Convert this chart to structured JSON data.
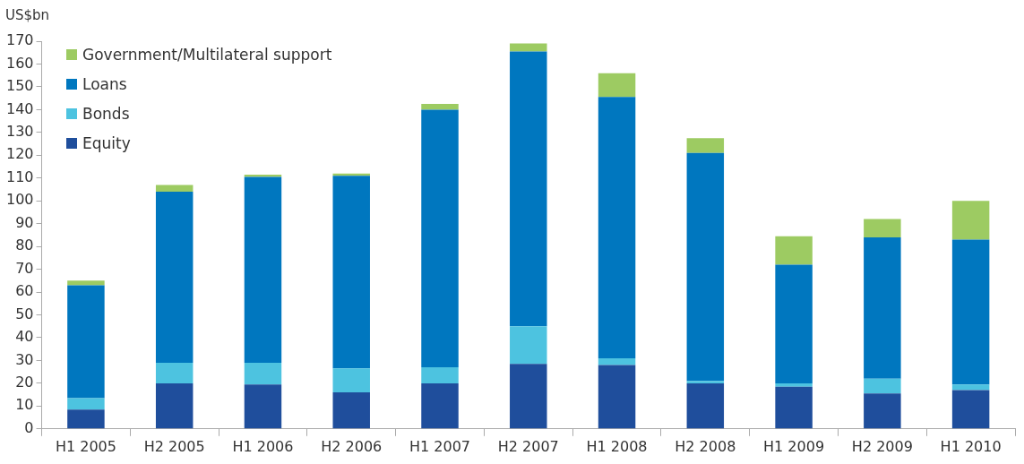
{
  "chart_data": {
    "type": "bar",
    "ylabel": "US$bn",
    "stacked": true,
    "legend": "top left",
    "grid": false,
    "categories": [
      "H1 2005",
      "H2 2005",
      "H1 2006",
      "H2 2006",
      "H1 2007",
      "H2 2007",
      "H1 2008",
      "H2 2008",
      "H1 2009",
      "H2 2009",
      "H1 2010"
    ],
    "series": [
      {
        "name": "Equity",
        "color": "#1f4e9c",
        "values": [
          8.5,
          20,
          19.5,
          16,
          20,
          28.5,
          28,
          20,
          18.5,
          15.5,
          17
        ]
      },
      {
        "name": "Bonds",
        "color": "#4dc3e0",
        "values": [
          5,
          9,
          9.5,
          10.5,
          7,
          16.5,
          3,
          1,
          1.5,
          6.5,
          2.5
        ]
      },
      {
        "name": "Loans",
        "color": "#0077bf",
        "values": [
          49.5,
          75,
          81.5,
          84.5,
          113,
          120.5,
          114.5,
          100,
          52,
          62,
          63.5
        ]
      },
      {
        "name": "Government/Multilateral support",
        "color": "#9dcb62",
        "values": [
          2,
          3,
          1,
          1,
          2.5,
          3.5,
          10.5,
          6.5,
          12.5,
          8,
          17
        ]
      }
    ],
    "ylim": [
      0,
      170
    ],
    "yticks": [
      0,
      10,
      20,
      30,
      40,
      50,
      60,
      70,
      80,
      90,
      100,
      110,
      120,
      130,
      140,
      150,
      160,
      170
    ]
  }
}
